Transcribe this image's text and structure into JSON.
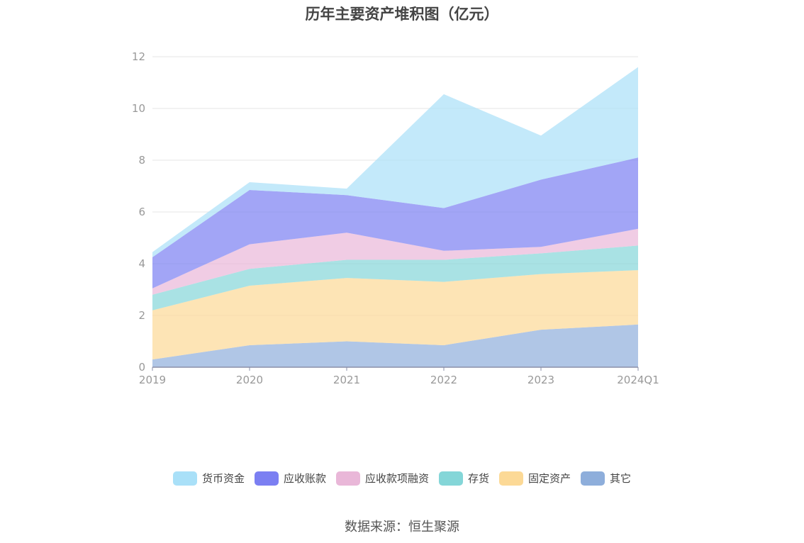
{
  "chart_data": {
    "type": "area",
    "stacked": true,
    "title": "历年主要资产堆积图（亿元）",
    "categories": [
      "2019",
      "2020",
      "2021",
      "2022",
      "2023",
      "2024Q1"
    ],
    "ylim": [
      0,
      12
    ],
    "yticks": [
      0,
      2,
      4,
      6,
      8,
      10,
      12
    ],
    "grid": true,
    "legend_position": "bottom",
    "series": [
      {
        "name": "其它",
        "color": "#8eaedb",
        "values": [
          0.3,
          0.85,
          1.0,
          0.85,
          1.45,
          1.65
        ]
      },
      {
        "name": "固定资产",
        "color": "#fcd996",
        "values": [
          1.9,
          2.3,
          2.45,
          2.45,
          2.15,
          2.1
        ]
      },
      {
        "name": "存货",
        "color": "#84d6d8",
        "values": [
          0.6,
          0.65,
          0.7,
          0.85,
          0.8,
          0.95
        ]
      },
      {
        "name": "应收款项融资",
        "color": "#e9b7d8",
        "values": [
          0.25,
          0.95,
          1.05,
          0.35,
          0.25,
          0.65
        ]
      },
      {
        "name": "应收账款",
        "color": "#7b7ff2",
        "values": [
          1.2,
          2.1,
          1.45,
          1.65,
          2.6,
          2.75
        ]
      },
      {
        "name": "货币资金",
        "color": "#a9e0f8",
        "values": [
          0.2,
          0.3,
          0.25,
          4.4,
          1.7,
          3.5
        ]
      }
    ]
  },
  "legend": {
    "items": [
      {
        "label": "货币资金",
        "color": "#a9e0f8"
      },
      {
        "label": "应收账款",
        "color": "#7b7ff2"
      },
      {
        "label": "应收款项融资",
        "color": "#e9b7d8"
      },
      {
        "label": "存货",
        "color": "#84d6d8"
      },
      {
        "label": "固定资产",
        "color": "#fcd996"
      },
      {
        "label": "其它",
        "color": "#8eaedb"
      }
    ]
  },
  "source": "数据来源：恒生聚源"
}
